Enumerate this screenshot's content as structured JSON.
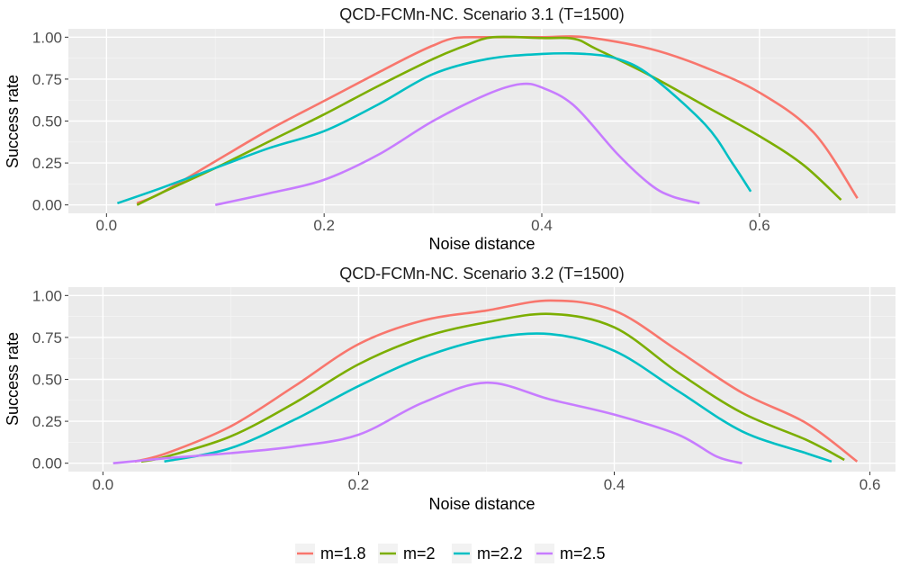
{
  "chart_data": [
    {
      "type": "line",
      "title": "QCD-FCMn-NC. Scenario 3.1 (T=1500)",
      "xlabel": "Noise distance",
      "ylabel": "Success rate",
      "xlim": [
        -0.035,
        0.725
      ],
      "ylim": [
        -0.05,
        1.05
      ],
      "xticks": [
        0.0,
        0.2,
        0.4,
        0.6
      ],
      "xtick_labels": [
        "0.0",
        "0.2",
        "0.4",
        "0.6"
      ],
      "yticks": [
        0.0,
        0.25,
        0.5,
        0.75,
        1.0
      ],
      "ytick_labels": [
        "0.00",
        "0.25",
        "0.50",
        "0.75",
        "1.00"
      ],
      "grid": true,
      "series": [
        {
          "name": "m=1.8",
          "color": "#F8766D",
          "points": [
            [
              0.028,
              0.01
            ],
            [
              0.05,
              0.07
            ],
            [
              0.1,
              0.26
            ],
            [
              0.15,
              0.45
            ],
            [
              0.2,
              0.62
            ],
            [
              0.25,
              0.79
            ],
            [
              0.28,
              0.89
            ],
            [
              0.3,
              0.95
            ],
            [
              0.32,
              0.995
            ],
            [
              0.35,
              1.0
            ],
            [
              0.4,
              1.0
            ],
            [
              0.44,
              1.0
            ],
            [
              0.5,
              0.93
            ],
            [
              0.55,
              0.82
            ],
            [
              0.6,
              0.67
            ],
            [
              0.65,
              0.43
            ],
            [
              0.69,
              0.04
            ]
          ]
        },
        {
          "name": "m=2",
          "color": "#7CAE00",
          "points": [
            [
              0.028,
              0.0
            ],
            [
              0.05,
              0.07
            ],
            [
              0.1,
              0.22
            ],
            [
              0.15,
              0.38
            ],
            [
              0.2,
              0.54
            ],
            [
              0.25,
              0.71
            ],
            [
              0.3,
              0.87
            ],
            [
              0.33,
              0.95
            ],
            [
              0.355,
              1.0
            ],
            [
              0.4,
              0.995
            ],
            [
              0.43,
              0.99
            ],
            [
              0.45,
              0.93
            ],
            [
              0.5,
              0.77
            ],
            [
              0.55,
              0.59
            ],
            [
              0.6,
              0.41
            ],
            [
              0.64,
              0.24
            ],
            [
              0.675,
              0.03
            ]
          ]
        },
        {
          "name": "m=2.2",
          "color": "#00BFC4",
          "points": [
            [
              0.01,
              0.01
            ],
            [
              0.05,
              0.1
            ],
            [
              0.1,
              0.22
            ],
            [
              0.15,
              0.34
            ],
            [
              0.2,
              0.44
            ],
            [
              0.25,
              0.6
            ],
            [
              0.3,
              0.78
            ],
            [
              0.35,
              0.87
            ],
            [
              0.4,
              0.9
            ],
            [
              0.44,
              0.9
            ],
            [
              0.47,
              0.87
            ],
            [
              0.5,
              0.77
            ],
            [
              0.55,
              0.48
            ],
            [
              0.575,
              0.25
            ],
            [
              0.592,
              0.08
            ]
          ]
        },
        {
          "name": "m=2.5",
          "color": "#C77CFF",
          "points": [
            [
              0.1,
              0.0
            ],
            [
              0.15,
              0.07
            ],
            [
              0.2,
              0.15
            ],
            [
              0.25,
              0.3
            ],
            [
              0.3,
              0.5
            ],
            [
              0.35,
              0.66
            ],
            [
              0.38,
              0.72
            ],
            [
              0.4,
              0.7
            ],
            [
              0.43,
              0.59
            ],
            [
              0.47,
              0.3
            ],
            [
              0.5,
              0.12
            ],
            [
              0.52,
              0.05
            ],
            [
              0.545,
              0.01
            ]
          ]
        }
      ]
    },
    {
      "type": "line",
      "title": "QCD-FCMn-NC. Scenario 3.2 (T=1500)",
      "xlabel": "Noise distance",
      "ylabel": "Success rate",
      "xlim": [
        -0.027,
        0.62
      ],
      "ylim": [
        -0.05,
        1.05
      ],
      "xticks": [
        0.0,
        0.2,
        0.4,
        0.6
      ],
      "xtick_labels": [
        "0.0",
        "0.2",
        "0.4",
        "0.6"
      ],
      "yticks": [
        0.0,
        0.25,
        0.5,
        0.75,
        1.0
      ],
      "ytick_labels": [
        "0.00",
        "0.25",
        "0.50",
        "0.75",
        "1.00"
      ],
      "grid": true,
      "series": [
        {
          "name": "m=1.8",
          "color": "#F8766D",
          "points": [
            [
              0.025,
              0.01
            ],
            [
              0.05,
              0.06
            ],
            [
              0.1,
              0.22
            ],
            [
              0.15,
              0.46
            ],
            [
              0.2,
              0.71
            ],
            [
              0.25,
              0.85
            ],
            [
              0.3,
              0.91
            ],
            [
              0.35,
              0.97
            ],
            [
              0.4,
              0.91
            ],
            [
              0.45,
              0.67
            ],
            [
              0.5,
              0.42
            ],
            [
              0.55,
              0.24
            ],
            [
              0.59,
              0.01
            ]
          ]
        },
        {
          "name": "m=2",
          "color": "#7CAE00",
          "points": [
            [
              0.03,
              0.01
            ],
            [
              0.05,
              0.04
            ],
            [
              0.1,
              0.16
            ],
            [
              0.15,
              0.36
            ],
            [
              0.2,
              0.59
            ],
            [
              0.25,
              0.75
            ],
            [
              0.3,
              0.84
            ],
            [
              0.35,
              0.89
            ],
            [
              0.4,
              0.81
            ],
            [
              0.45,
              0.54
            ],
            [
              0.5,
              0.3
            ],
            [
              0.55,
              0.14
            ],
            [
              0.58,
              0.02
            ]
          ]
        },
        {
          "name": "m=2.2",
          "color": "#00BFC4",
          "points": [
            [
              0.048,
              0.01
            ],
            [
              0.1,
              0.09
            ],
            [
              0.15,
              0.26
            ],
            [
              0.2,
              0.46
            ],
            [
              0.25,
              0.63
            ],
            [
              0.3,
              0.74
            ],
            [
              0.35,
              0.77
            ],
            [
              0.4,
              0.67
            ],
            [
              0.45,
              0.43
            ],
            [
              0.5,
              0.19
            ],
            [
              0.55,
              0.06
            ],
            [
              0.57,
              0.01
            ]
          ]
        },
        {
          "name": "m=2.5",
          "color": "#C77CFF",
          "points": [
            [
              0.008,
              0.0
            ],
            [
              0.05,
              0.03
            ],
            [
              0.1,
              0.06
            ],
            [
              0.15,
              0.1
            ],
            [
              0.2,
              0.17
            ],
            [
              0.25,
              0.36
            ],
            [
              0.3,
              0.48
            ],
            [
              0.35,
              0.38
            ],
            [
              0.4,
              0.29
            ],
            [
              0.45,
              0.17
            ],
            [
              0.48,
              0.04
            ],
            [
              0.5,
              0.0
            ]
          ]
        }
      ]
    }
  ],
  "legend": [
    {
      "label": "m=1.8",
      "color": "#F8766D"
    },
    {
      "label": "m=2",
      "color": "#7CAE00"
    },
    {
      "label": "m=2.2",
      "color": "#00BFC4"
    },
    {
      "label": "m=2.5",
      "color": "#C77CFF"
    }
  ]
}
